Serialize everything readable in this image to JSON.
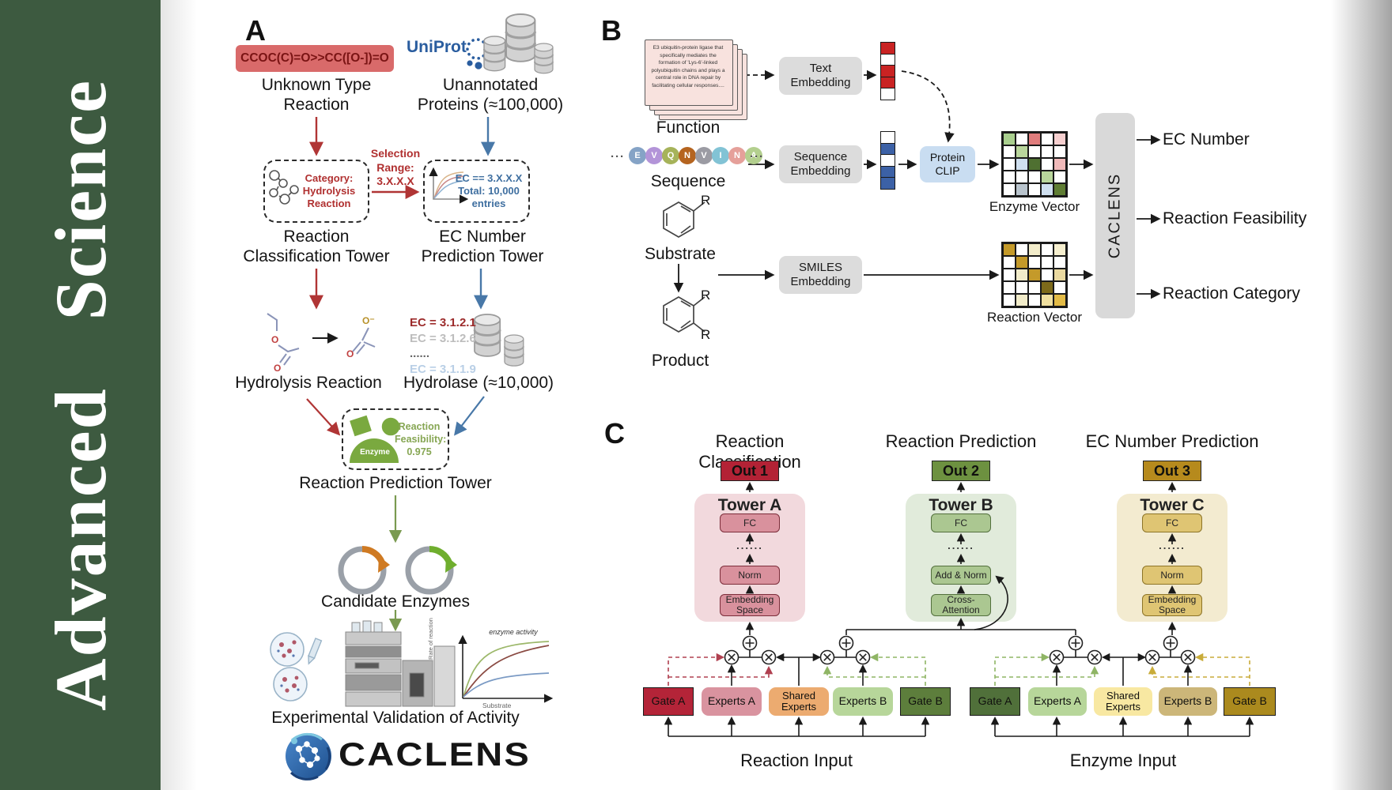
{
  "sidebar": {
    "journal": "Advanced Science",
    "bg": "#3d5a40"
  },
  "panelA": {
    "label": "A",
    "smiles": "CCOC(C)=O>>CC([O-])=O",
    "unknown_reaction": [
      "Unknown Type",
      "Reaction"
    ],
    "uniprot": "UniProt",
    "unannotated": [
      "Unannotated",
      "Proteins (≈100,000)"
    ],
    "selection": [
      "Selection",
      "Range:",
      "3.X.X.X"
    ],
    "category_box": [
      "Category:",
      "Hydrolysis",
      "Reaction"
    ],
    "ec_box": [
      "EC == 3.X.X.X",
      "Total: 10,000",
      "entries"
    ],
    "tower1": [
      "Reaction",
      "Classification Tower"
    ],
    "tower2": [
      "EC Number",
      "Prediction Tower"
    ],
    "ec_list": [
      {
        "text": "EC = 3.1.2.1",
        "color": "#9c2b2b",
        "bold": true
      },
      {
        "text": "EC = 3.1.2.6",
        "color": "#bdbdbd",
        "bold": true
      },
      {
        "text": "......",
        "color": "#666666",
        "bold": true
      },
      {
        "text": "EC = 3.1.1.9",
        "color": "#b9cfe6",
        "bold": true
      }
    ],
    "hydrolysis": "Hydrolysis Reaction",
    "hydrolase": "Hydrolase (≈10,000)",
    "enzyme": "Enzyme",
    "feasibility": [
      "Reaction",
      "Feasibility:",
      "0.975"
    ],
    "tower3": "Reaction Prediction Tower",
    "candidates": "Candidate Enzymes",
    "graph": {
      "ylabel": "Rate of reaction",
      "xlabel": "Substrate",
      "annotation": "enzyme activity"
    },
    "validation": "Experimental Validation of Activity",
    "wordmark": "CACLENS"
  },
  "panelB": {
    "label": "B",
    "function_text": "E3 ubiquitin-protein ligase that specifically mediates the formation of 'Lys-6'-linked polyubiquitin chains and plays a central role in DNA repair by facilitating cellular responses....",
    "function_label": "Function",
    "ellipsis": "···",
    "sequence": [
      {
        "l": "E",
        "c": "#85a3c6"
      },
      {
        "l": "V",
        "c": "#b394d8"
      },
      {
        "l": "Q",
        "c": "#a6b35a"
      },
      {
        "l": "N",
        "c": "#b5641f"
      },
      {
        "l": "V",
        "c": "#9b9ba3"
      },
      {
        "l": "I",
        "c": "#82c3d5"
      },
      {
        "l": "N",
        "c": "#e5a09a"
      },
      {
        "l": "A",
        "c": "#b3cf8e"
      }
    ],
    "sequence_label": "Sequence",
    "substrate_label": "Substrate",
    "product_label": "Product",
    "r_label": "R",
    "text_embedding": "Text Embedding",
    "sequence_embedding": "Sequence Embedding",
    "smiles_embedding": "SMILES Embedding",
    "protein_clip": "Protein CLIP",
    "text_vector": [
      "#c92323",
      "#ffffff",
      "#c92323",
      "#c92323",
      "#ffffff"
    ],
    "sequence_vector": [
      "#ffffff",
      "#3c61a6",
      "#ffffff",
      "#3c61a6",
      "#3c61a6"
    ],
    "enzyme_grid": [
      [
        "#a9cf8e",
        "#ffffff",
        "#e07d7d",
        "#ffffff",
        "#f6cfcf"
      ],
      [
        "#ffffff",
        "#b9d69c",
        "#ffffff",
        "#ffffff",
        "#ffffff"
      ],
      [
        "#ffffff",
        "#cfdfef",
        "#4f7031",
        "#ffffff",
        "#f0b9b9"
      ],
      [
        "#ffffff",
        "#ffffff",
        "#ffffff",
        "#b9d69c",
        "#ffffff"
      ],
      [
        "#ffffff",
        "#b9c4cd",
        "#ffffff",
        "#cfdfef",
        "#5f7d33"
      ]
    ],
    "reaction_grid": [
      [
        "#c49a2a",
        "#ffffff",
        "#f2ecca",
        "#ffffff",
        "#f6efcf"
      ],
      [
        "#ffffff",
        "#c49a2a",
        "#ffffff",
        "#ffffff",
        "#ffffff"
      ],
      [
        "#ffffff",
        "#f2ecca",
        "#c49a2a",
        "#ffffff",
        "#ead9a0"
      ],
      [
        "#ffffff",
        "#ffffff",
        "#ffffff",
        "#7d6a1a",
        "#ffffff"
      ],
      [
        "#ffffff",
        "#f2ecca",
        "#ffffff",
        "#f0e0a0",
        "#e3bb46"
      ]
    ],
    "enzyme_vector_label": "Enzyme Vector",
    "reaction_vector_label": "Reaction Vector",
    "caclens": "CACLENS",
    "outputs": [
      "EC Number",
      "Reaction Feasibility",
      "Reaction Category"
    ]
  },
  "panelC": {
    "label": "C",
    "headers": [
      "Reaction Classification",
      "Reaction Prediction",
      "EC Number Prediction"
    ],
    "outs": [
      {
        "label": "Out 1",
        "color": "#b32235"
      },
      {
        "label": "Out 2",
        "color": "#6d9140"
      },
      {
        "label": "Out 3",
        "color": "#b68a1d"
      }
    ],
    "towers": [
      {
        "name": "Tower A",
        "bg": "#f2d9dd",
        "box_bg": "#d9919d",
        "box_border": "#7c2d3a",
        "layers": [
          "FC",
          "......",
          "Norm",
          "Embedding Space"
        ]
      },
      {
        "name": "Tower B",
        "bg": "#e1ebdb",
        "box_bg": "#abc791",
        "box_border": "#53703d",
        "layers": [
          "FC",
          "......",
          "Add & Norm",
          "Cross-Attention"
        ]
      },
      {
        "name": "Tower C",
        "bg": "#f3ebd0",
        "box_bg": "#dfc573",
        "box_border": "#8d7427",
        "layers": [
          "FC",
          "......",
          "Norm",
          "Embedding Space"
        ]
      }
    ],
    "moe_left": {
      "boxes": [
        {
          "label": "Gate A",
          "bg": "#b42438"
        },
        {
          "label": "Experts A",
          "bg": "#d9939f"
        },
        {
          "label": "Shared Experts",
          "bg": "#ecab70"
        },
        {
          "label": "Experts B",
          "bg": "#b7d69a"
        },
        {
          "label": "Gate B",
          "bg": "#5d7e3c"
        }
      ],
      "input": "Reaction Input"
    },
    "moe_right": {
      "boxes": [
        {
          "label": "Gate A",
          "bg": "#50703a"
        },
        {
          "label": "Experts A",
          "bg": "#b7d69a"
        },
        {
          "label": "Shared Experts",
          "bg": "#f8e8a2"
        },
        {
          "label": "Experts B",
          "bg": "#ccb679"
        },
        {
          "label": "Gate B",
          "bg": "#ab8a1e"
        }
      ],
      "input": "Enzyme Input"
    }
  }
}
